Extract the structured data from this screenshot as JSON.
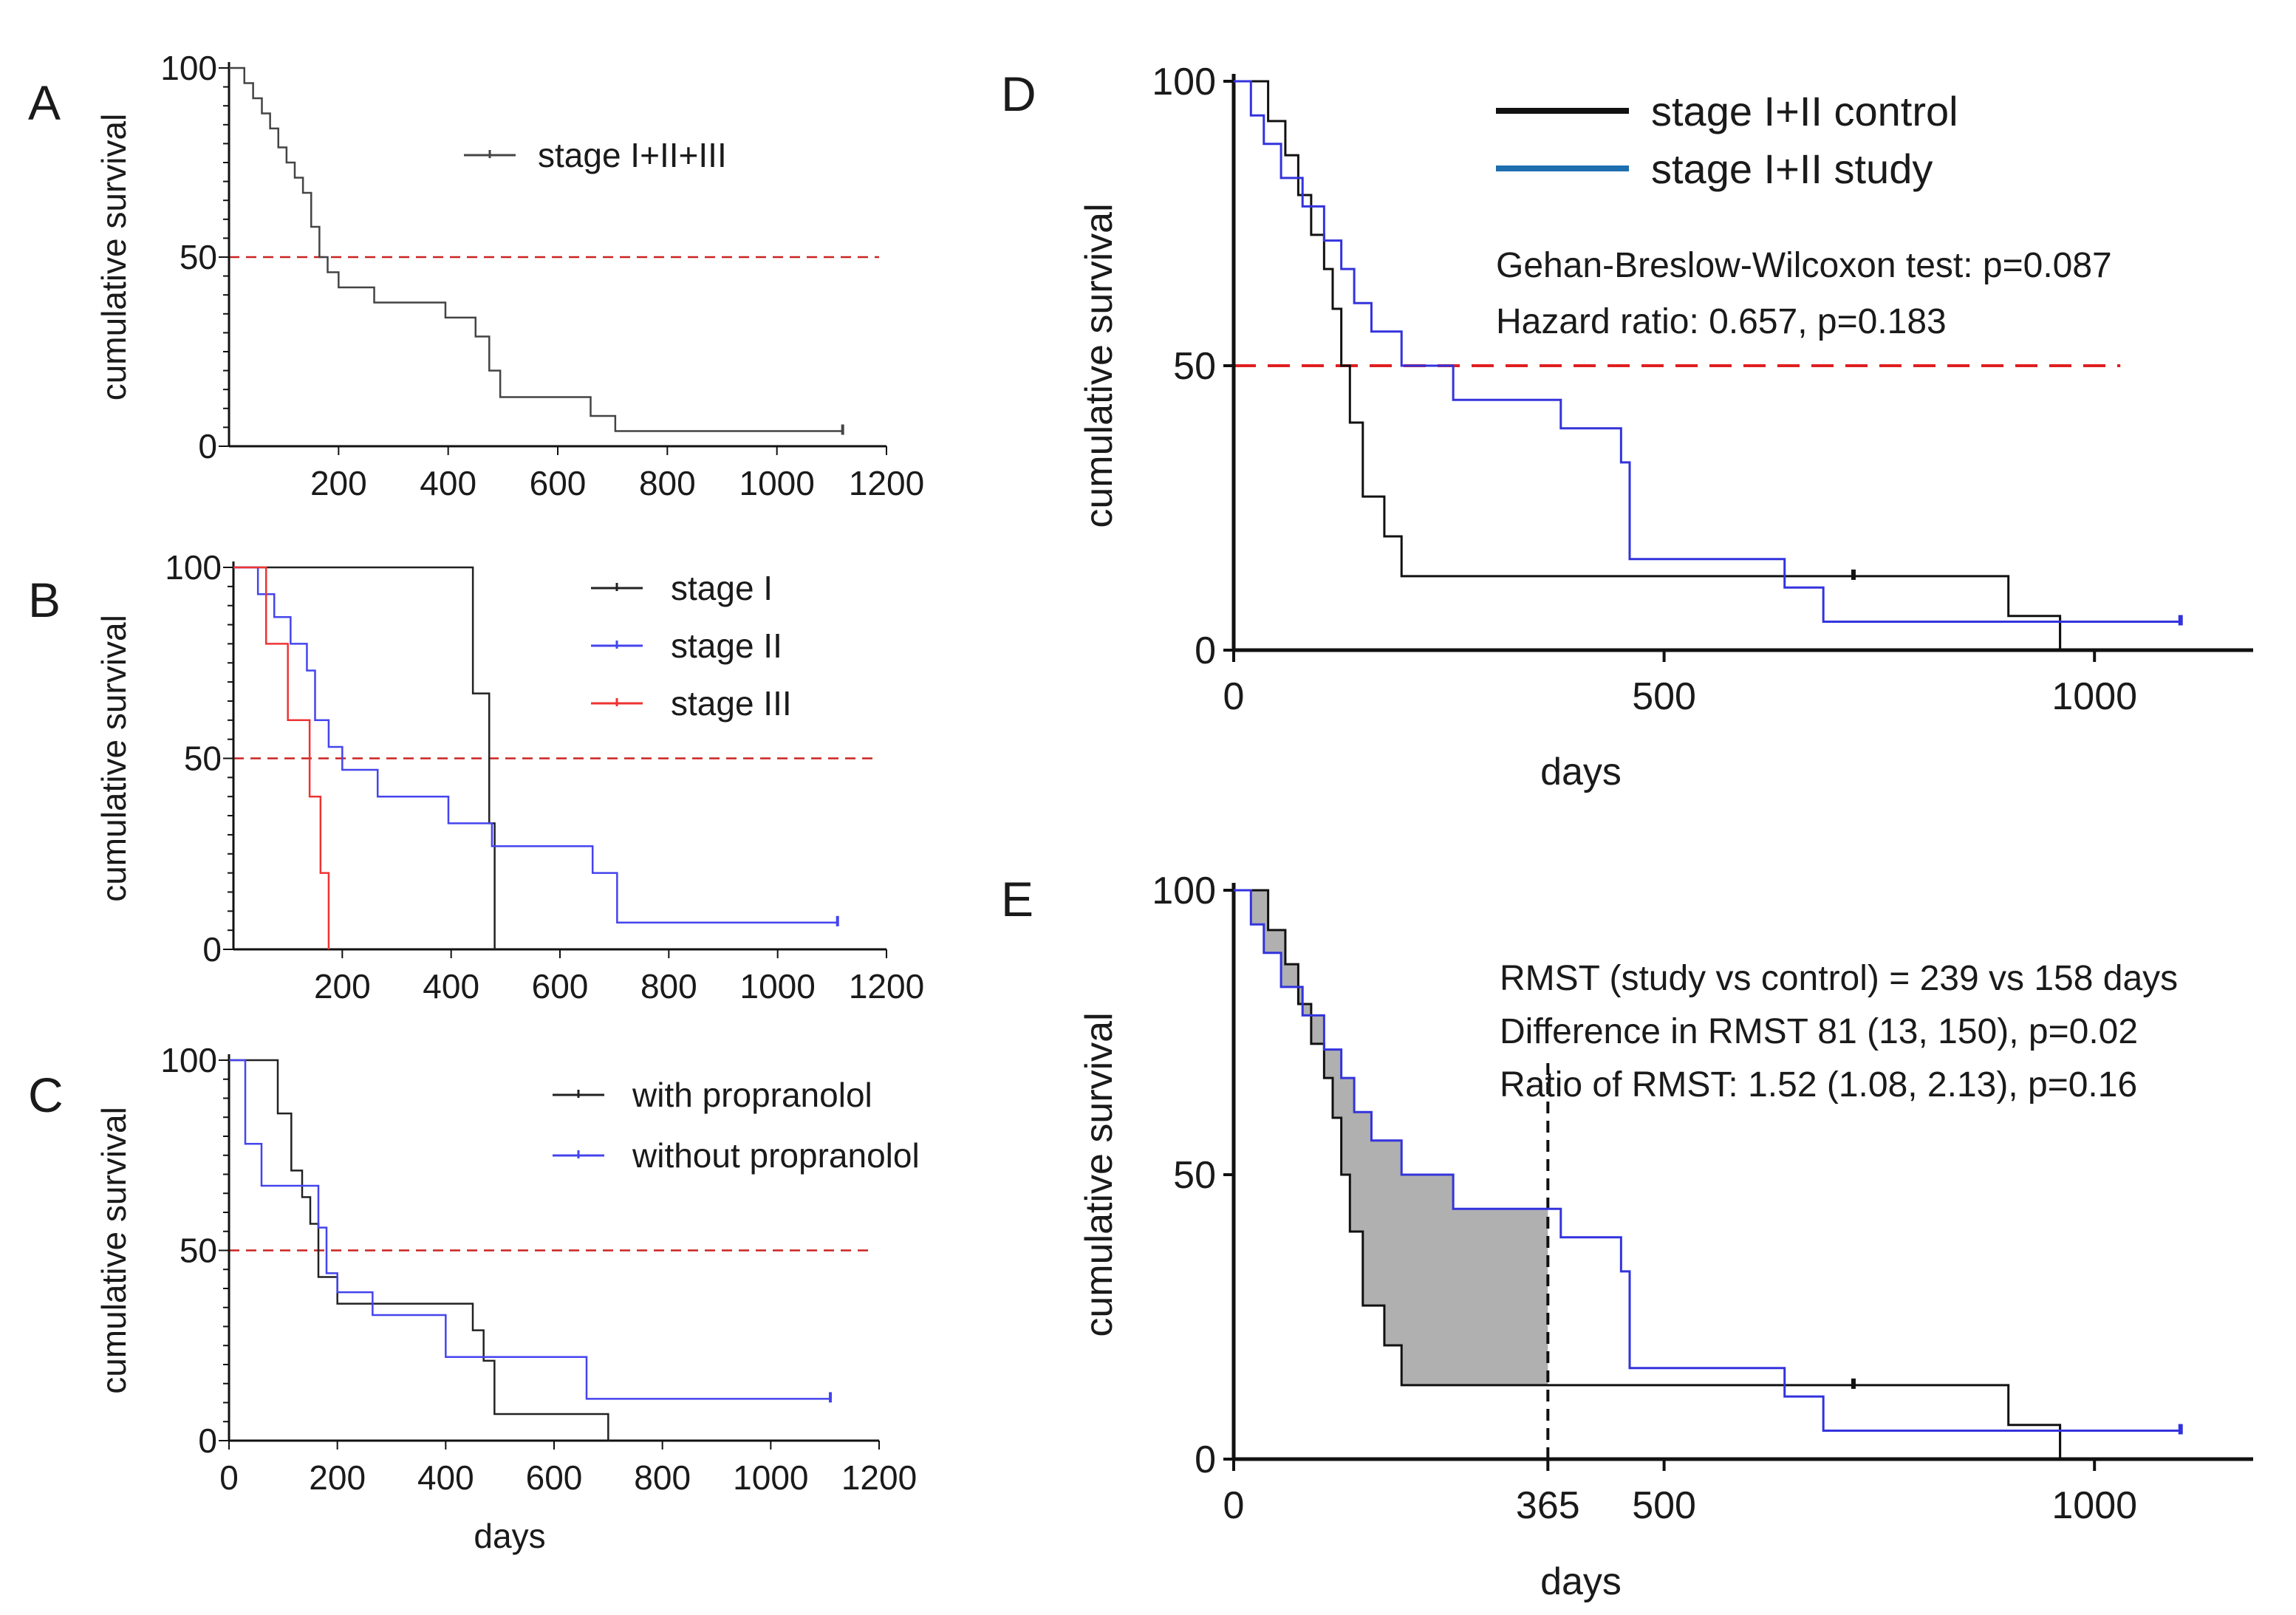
{
  "chart_data": [
    {
      "panel": "A",
      "type": "line",
      "step": true,
      "ylabel": "cumulative survival",
      "xlabel": "",
      "xlim": [
        0,
        1200
      ],
      "ylim": [
        0,
        100
      ],
      "xticks": [
        "200",
        "400",
        "600",
        "800",
        "1000",
        "1200"
      ],
      "yticks": [
        "0",
        "50",
        "100"
      ],
      "reference_line": {
        "y": 50,
        "color": "#cc2222",
        "style": "dashed"
      },
      "legend": [
        "stage I+II+III"
      ],
      "series": [
        {
          "name": "stage I+II+III",
          "color": "#444444",
          "censor_x": 1120,
          "x": [
            0,
            28,
            44,
            60,
            75,
            90,
            105,
            120,
            135,
            150,
            165,
            180,
            200,
            265,
            395,
            450,
            475,
            495,
            660,
            705,
            1120
          ],
          "y": [
            100,
            96,
            92,
            88,
            84,
            79,
            75,
            71,
            67,
            58,
            50,
            46,
            42,
            38,
            34,
            29,
            20,
            13,
            8,
            4,
            4
          ]
        }
      ]
    },
    {
      "panel": "B",
      "type": "line",
      "step": true,
      "ylabel": "cumulative survival",
      "xlabel": "",
      "xlim": [
        0,
        1200
      ],
      "ylim": [
        0,
        100
      ],
      "xticks": [
        "200",
        "400",
        "600",
        "800",
        "1000",
        "1200"
      ],
      "yticks": [
        "0",
        "50",
        "100"
      ],
      "reference_line": {
        "y": 50,
        "color": "#cc2222",
        "style": "dashed"
      },
      "legend": [
        "stage I",
        "stage II",
        "stage III"
      ],
      "series": [
        {
          "name": "stage I",
          "color": "#222222",
          "censor_x": null,
          "x": [
            0,
            440,
            470,
            480
          ],
          "y": [
            100,
            67,
            33,
            0
          ]
        },
        {
          "name": "stage II",
          "color": "#4444ee",
          "censor_x": 1110,
          "x": [
            0,
            45,
            75,
            105,
            135,
            150,
            175,
            200,
            265,
            395,
            475,
            660,
            705,
            1110
          ],
          "y": [
            100,
            93,
            87,
            80,
            73,
            60,
            53,
            47,
            40,
            33,
            27,
            20,
            7,
            7
          ]
        },
        {
          "name": "stage III",
          "color": "#ee3333",
          "censor_x": null,
          "x": [
            0,
            60,
            100,
            140,
            160,
            175
          ],
          "y": [
            100,
            80,
            60,
            40,
            20,
            0
          ]
        }
      ]
    },
    {
      "panel": "C",
      "type": "line",
      "step": true,
      "ylabel": "cumulative survival",
      "xlabel": "days",
      "xlim": [
        0,
        1200
      ],
      "ylim": [
        0,
        100
      ],
      "xticks": [
        "0",
        "200",
        "400",
        "600",
        "800",
        "1000",
        "1200"
      ],
      "yticks": [
        "0",
        "50",
        "100"
      ],
      "reference_line": {
        "y": 50,
        "color": "#cc2222",
        "style": "dashed"
      },
      "legend": [
        "with propranolol",
        "without propranolol"
      ],
      "series": [
        {
          "name": "with propranolol",
          "color": "#222222",
          "censor_x": null,
          "x": [
            0,
            90,
            115,
            135,
            150,
            165,
            200,
            270,
            450,
            470,
            490,
            700
          ],
          "y": [
            100,
            86,
            71,
            64,
            57,
            43,
            36,
            36,
            29,
            21,
            7,
            0
          ]
        },
        {
          "name": "without propranolol",
          "color": "#4444ee",
          "censor_x": 1110,
          "x": [
            0,
            30,
            60,
            165,
            180,
            200,
            265,
            400,
            660,
            1110
          ],
          "y": [
            100,
            78,
            67,
            56,
            44,
            39,
            33,
            22,
            11,
            11
          ]
        }
      ]
    },
    {
      "panel": "D",
      "type": "line",
      "step": true,
      "ylabel": "cumulative survival",
      "xlabel": "days",
      "xlim": [
        0,
        1150
      ],
      "ylim": [
        0,
        100
      ],
      "xticks": [
        "0",
        "500",
        "1000"
      ],
      "yticks": [
        "0",
        "50",
        "100"
      ],
      "reference_line": {
        "y": 50,
        "color": "#e02020",
        "style": "dashed",
        "x_end": 1030
      },
      "legend": [
        "stage I+II control",
        "stage I+II study"
      ],
      "annotations": [
        "Gehan-Breslow-Wilcoxon test:  p=0.087",
        "Hazard ratio: 0.657, p=0.183"
      ],
      "series": [
        {
          "name": "stage I+II control",
          "color": "#111111",
          "censor_x": 720,
          "end_x": 960,
          "x": [
            0,
            40,
            60,
            75,
            90,
            105,
            115,
            125,
            135,
            150,
            175,
            195,
            900,
            960
          ],
          "y": [
            100,
            93,
            87,
            80,
            73,
            67,
            60,
            50,
            40,
            27,
            20,
            13,
            6,
            0
          ]
        },
        {
          "name": "stage I+II study",
          "color": "#3333dd",
          "censor_x": 1100,
          "x": [
            0,
            20,
            35,
            55,
            80,
            105,
            125,
            140,
            160,
            195,
            255,
            380,
            450,
            460,
            640,
            685,
            1100
          ],
          "y": [
            100,
            94,
            89,
            83,
            78,
            72,
            67,
            61,
            56,
            50,
            44,
            39,
            33,
            16,
            11,
            5,
            5
          ]
        }
      ]
    },
    {
      "panel": "E",
      "type": "line",
      "step": true,
      "ylabel": "cumulative survival",
      "xlabel": "days",
      "xlim": [
        0,
        1150
      ],
      "ylim": [
        0,
        100
      ],
      "xticks": [
        "0",
        "365",
        "500",
        "1000"
      ],
      "yticks": [
        "0",
        "50",
        "100"
      ],
      "vertical_line": {
        "x": 365,
        "style": "dashed"
      },
      "shaded_region": {
        "from": 0,
        "to": 365,
        "color": "#b0b0b0",
        "meaning": "RMST difference"
      },
      "annotations": [
        "RMST (study vs control) = 239 vs 158 days",
        "Difference in RMST 81 (13, 150), p=0.02",
        "Ratio of RMST: 1.52 (1.08, 2.13), p=0.16"
      ],
      "series": [
        {
          "name": "stage I+II control",
          "color": "#111111",
          "censor_x": 720,
          "end_x": 960,
          "x": [
            0,
            40,
            60,
            75,
            90,
            105,
            115,
            125,
            135,
            150,
            175,
            195,
            900,
            960
          ],
          "y": [
            100,
            93,
            87,
            80,
            73,
            67,
            60,
            50,
            40,
            27,
            20,
            13,
            6,
            0
          ]
        },
        {
          "name": "stage I+II study",
          "color": "#3333dd",
          "censor_x": 1100,
          "x": [
            0,
            20,
            35,
            55,
            80,
            105,
            125,
            140,
            160,
            195,
            255,
            380,
            450,
            460,
            640,
            685,
            1100
          ],
          "y": [
            100,
            94,
            89,
            83,
            78,
            72,
            67,
            61,
            56,
            50,
            44,
            39,
            33,
            16,
            11,
            5,
            5
          ]
        }
      ]
    }
  ]
}
